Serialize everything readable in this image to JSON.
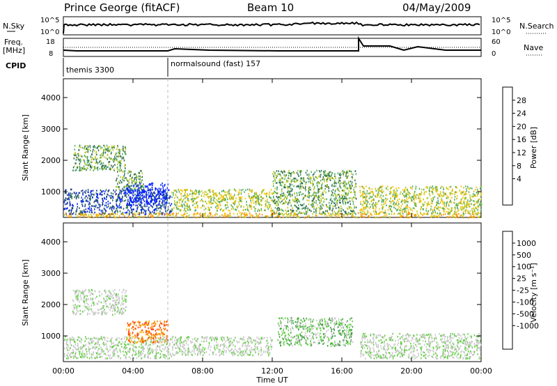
{
  "header": {
    "station": "Prince George (fitACF)",
    "beam": "Beam 10",
    "date": "04/May/2009"
  },
  "strip": {
    "nsky_label": "N.Sky",
    "nsky_ticks": [
      "10^5",
      "10^0"
    ],
    "nsky_right_ticks": [
      "10^5",
      "10^0"
    ],
    "nsearch_label": "N.Search",
    "freq_label": "Freq.",
    "freq_unit": "[MHz]",
    "freq_ticks": [
      "18",
      "8"
    ],
    "nave_ticks": [
      "60",
      "0"
    ],
    "nave_label": "Nave",
    "cpid_label": "CPID",
    "cpid_segments": [
      {
        "name": "themis 3300",
        "start_hour": 0.0
      },
      {
        "name": "normalsound (fast) 157",
        "start_hour": 6.0
      }
    ]
  },
  "x_axis": {
    "title": "Time UT",
    "ticks": [
      "00:00",
      "04:00",
      "08:00",
      "12:00",
      "16:00",
      "20:00",
      "00:00"
    ],
    "range_hours": [
      0,
      24
    ]
  },
  "colorbars": {
    "power": {
      "label": "Power [dB]",
      "ticks": [
        "28",
        "24",
        "20",
        "16",
        "12",
        "8",
        "4"
      ],
      "colors": [
        "#e00000",
        "#ff3b00",
        "#ff8c00",
        "#ffc000",
        "#b8c820",
        "#4da860",
        "#2a6a50",
        "#1a3a9a",
        "#0020ff"
      ]
    },
    "velocity": {
      "label": "Velocity [m s⁻¹]",
      "ticks": [
        "1000",
        "500",
        "100",
        "25",
        "-25",
        "-100",
        "-500",
        "-1000"
      ],
      "colors": [
        "#2030c0",
        "#1a6a40",
        "#3a9a40",
        "#60d040",
        "#c8c8c8",
        "#c8c8c8",
        "#ffb000",
        "#ff7a00",
        "#ff3a00",
        "#e00000"
      ]
    }
  },
  "chart_data": [
    {
      "type": "heatmap",
      "name": "power",
      "ylabel": "Slant Range [km]",
      "xlabel": "",
      "yticks": [
        "1000",
        "2000",
        "3000",
        "4000"
      ],
      "ylim": [
        180,
        4600
      ],
      "xlim_hours": [
        0,
        24
      ],
      "cbar": "Power [dB]",
      "regions": [
        {
          "x": [
            0.0,
            6.2
          ],
          "y": [
            300,
            1100
          ],
          "level": 7
        },
        {
          "x": [
            3.6,
            6.0
          ],
          "y": [
            600,
            1300
          ],
          "level": 9
        },
        {
          "x": [
            0.5,
            3.6
          ],
          "y": [
            1700,
            2500
          ],
          "level": 5
        },
        {
          "x": [
            3.0,
            4.6
          ],
          "y": [
            1100,
            1700
          ],
          "level": 5
        },
        {
          "x": [
            6.2,
            12.0
          ],
          "y": [
            400,
            1100
          ],
          "level": 4
        },
        {
          "x": [
            12.0,
            16.8
          ],
          "y": [
            300,
            1700
          ],
          "level": 5
        },
        {
          "x": [
            17.0,
            24.0
          ],
          "y": [
            300,
            1200
          ],
          "level": 4
        },
        {
          "x": [
            0.0,
            24.0
          ],
          "y": [
            200,
            350
          ],
          "level": 3
        }
      ]
    },
    {
      "type": "heatmap",
      "name": "velocity",
      "ylabel": "Slant Range [km]",
      "xlabel": "Time UT",
      "yticks": [
        "1000",
        "2000",
        "3000",
        "4000"
      ],
      "ylim": [
        180,
        4600
      ],
      "xlim_hours": [
        0,
        24
      ],
      "cbar": "Velocity [m s⁻¹]",
      "regions": [
        {
          "x": [
            0.0,
            6.2
          ],
          "y": [
            300,
            1000
          ],
          "level": 4
        },
        {
          "x": [
            3.6,
            6.0
          ],
          "y": [
            800,
            1500
          ],
          "level": 7
        },
        {
          "x": [
            0.5,
            3.6
          ],
          "y": [
            1700,
            2500
          ],
          "level": 4
        },
        {
          "x": [
            6.2,
            12.0
          ],
          "y": [
            400,
            1000
          ],
          "level": 4
        },
        {
          "x": [
            12.3,
            16.6
          ],
          "y": [
            700,
            1600
          ],
          "level": 3
        },
        {
          "x": [
            17.0,
            24.0
          ],
          "y": [
            300,
            1100
          ],
          "level": 4
        }
      ]
    }
  ]
}
